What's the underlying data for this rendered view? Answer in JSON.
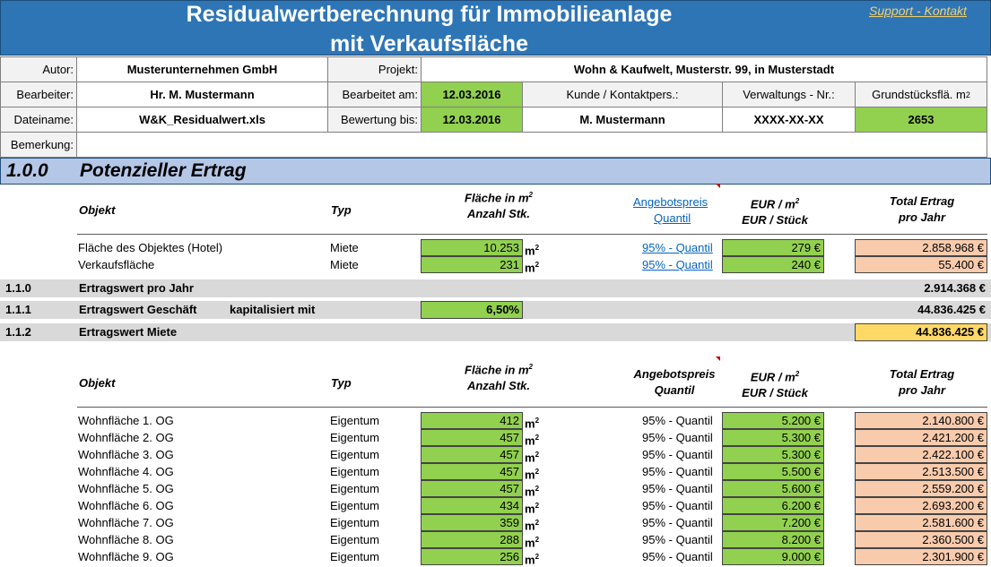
{
  "banner": {
    "title_line1": "Residualwertberechnung für Immobilieanlage",
    "title_line2": "mit Verkaufsfläche",
    "support_link": "Support - Kontakt"
  },
  "header": {
    "autor_label": "Autor:",
    "autor_value": "Musterunternehmen GmbH",
    "projekt_label": "Projekt:",
    "projekt_value": "Wohn & Kaufwelt, Musterstr. 99, in Musterstadt",
    "bearbeiter_label": "Bearbeiter:",
    "bearbeiter_value": "Hr. M. Mustermann",
    "bearbeitet_am_label": "Bearbeitet am:",
    "bearbeitet_am_value": "12.03.2016",
    "kunde_label": "Kunde / Kontaktpers.:",
    "verwaltungs_label": "Verwaltungs - Nr.:",
    "grundstueck_label": "Grundstücksflä. m",
    "grundstueck_sup": "2",
    "dateiname_label": "Dateiname:",
    "dateiname_value": "W&K_Residualwert.xls",
    "bewertung_label": "Bewertung bis:",
    "bewertung_value": "12.03.2016",
    "kunde_value": "M. Mustermann",
    "verwaltungs_value": "XXXX-XX-XX",
    "grundstueck_value": "2653",
    "bemerkung_label": "Bemerkung:",
    "bemerkung_value": ""
  },
  "section": {
    "number": "1.0.0",
    "title": "Potenzieller Ertrag"
  },
  "table1": {
    "headers": {
      "objekt": "Objekt",
      "typ": "Typ",
      "flaeche_line1": "Fläche in m",
      "flaeche_sup": "2",
      "flaeche_line2": "Anzahl Stk.",
      "angebot_line1": "Angebotspreis",
      "angebot_line2": "Quantil",
      "eur_line1": "EUR / m",
      "eur_sup": "2",
      "eur_line2": "EUR / Stück",
      "total_line1": "Total Ertrag",
      "total_line2": "pro Jahr"
    },
    "rows": [
      {
        "objekt": "Fläche des Objektes (Hotel)",
        "typ": "Miete",
        "flaeche": "10.253",
        "unit": "m",
        "unit_sup": "2",
        "quantil": "95% - Quantil",
        "eur": "279 €",
        "total": "2.858.968 €"
      },
      {
        "objekt": "Verkaufsfläche",
        "typ": "Miete",
        "flaeche": "231",
        "unit": "m",
        "unit_sup": "2",
        "quantil": "95% - Quantil",
        "eur": "240 €",
        "total": "55.400 €"
      }
    ]
  },
  "summary": [
    {
      "num": "1.1.0",
      "label": "Ertragswert pro Jahr",
      "extra": "",
      "input": "",
      "value": "2.914.368 €"
    },
    {
      "num": "1.1.1",
      "label": "Ertragswert Geschäft",
      "extra": "kapitalisiert mit",
      "input": "6,50%",
      "value": "44.836.425 €"
    },
    {
      "num": "1.1.2",
      "label": "Ertragswert Miete",
      "extra": "",
      "input": "",
      "value": "44.836.425 €"
    }
  ],
  "table2": {
    "headers": {
      "objekt": "Objekt",
      "typ": "Typ",
      "flaeche_line1": "Fläche in m",
      "flaeche_sup": "2",
      "flaeche_line2": "Anzahl Stk.",
      "angebot_line1": "Angebotspreis",
      "angebot_line2": "Quantil",
      "eur_line1": "EUR / m",
      "eur_sup": "2",
      "eur_line2": "EUR / Stück",
      "total_line1": "Total Ertrag",
      "total_line2": "pro Jahr"
    },
    "rows": [
      {
        "objekt": "Wohnfläche 1. OG",
        "typ": "Eigentum",
        "flaeche": "412",
        "unit": "m",
        "unit_sup": "2",
        "quantil": "95% - Quantil",
        "eur": "5.200 €",
        "total": "2.140.800 €"
      },
      {
        "objekt": "Wohnfläche 2. OG",
        "typ": "Eigentum",
        "flaeche": "457",
        "unit": "m",
        "unit_sup": "2",
        "quantil": "95% - Quantil",
        "eur": "5.300 €",
        "total": "2.421.200 €"
      },
      {
        "objekt": "Wohnfläche 3. OG",
        "typ": "Eigentum",
        "flaeche": "457",
        "unit": "m",
        "unit_sup": "2",
        "quantil": "95% - Quantil",
        "eur": "5.300 €",
        "total": "2.422.100 €"
      },
      {
        "objekt": "Wohnfläche 4. OG",
        "typ": "Eigentum",
        "flaeche": "457",
        "unit": "m",
        "unit_sup": "2",
        "quantil": "95% - Quantil",
        "eur": "5.500 €",
        "total": "2.513.500 €"
      },
      {
        "objekt": "Wohnfläche 5. OG",
        "typ": "Eigentum",
        "flaeche": "457",
        "unit": "m",
        "unit_sup": "2",
        "quantil": "95% - Quantil",
        "eur": "5.600 €",
        "total": "2.559.200 €"
      },
      {
        "objekt": "Wohnfläche 6. OG",
        "typ": "Eigentum",
        "flaeche": "434",
        "unit": "m",
        "unit_sup": "2",
        "quantil": "95% - Quantil",
        "eur": "6.200 €",
        "total": "2.693.200 €"
      },
      {
        "objekt": "Wohnfläche 7. OG",
        "typ": "Eigentum",
        "flaeche": "359",
        "unit": "m",
        "unit_sup": "2",
        "quantil": "95% - Quantil",
        "eur": "7.200 €",
        "total": "2.581.600 €"
      },
      {
        "objekt": "Wohnfläche 8. OG",
        "typ": "Eigentum",
        "flaeche": "288",
        "unit": "m",
        "unit_sup": "2",
        "quantil": "95% - Quantil",
        "eur": "8.200 €",
        "total": "2.360.500 €"
      },
      {
        "objekt": "Wohnfläche 9. OG",
        "typ": "Eigentum",
        "flaeche": "256",
        "unit": "m",
        "unit_sup": "2",
        "quantil": "95% - Quantil",
        "eur": "9.000 €",
        "total": "2.301.900 €"
      }
    ]
  },
  "colors": {
    "banner": "#2e75b6",
    "section": "#b4c7e7",
    "input_green": "#92d050",
    "total_orange": "#f8cbad",
    "highlight_yellow": "#ffd966",
    "summary_gray": "#d9d9d9",
    "link_blue": "#0563c1"
  }
}
